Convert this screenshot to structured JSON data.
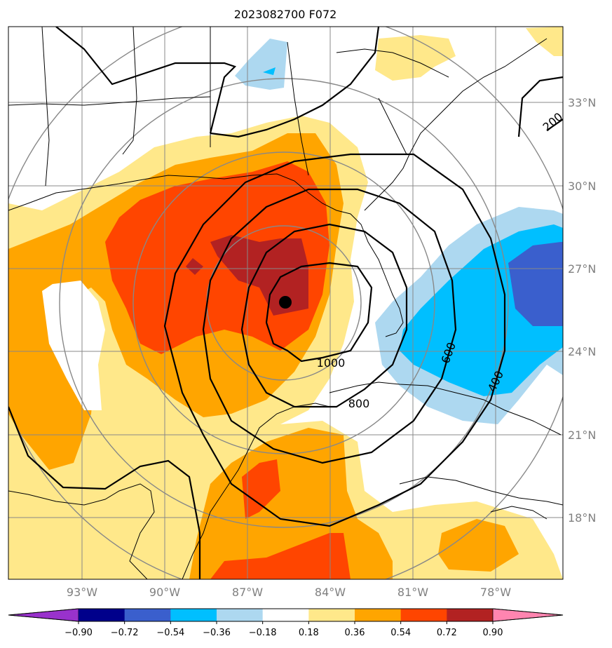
{
  "title": "2023082700 F072",
  "lon_labels": [
    "93°W",
    "90°W",
    "87°W",
    "84°W",
    "81°W",
    "78°W"
  ],
  "lat_labels": [
    "33°N",
    "30°N",
    "27°N",
    "24°N",
    "21°N",
    "18°N"
  ],
  "contour_labels": [
    "1000",
    "800",
    "600",
    "400",
    "200"
  ],
  "colorbar": {
    "tick_labels": [
      "−0.90",
      "−0.72",
      "−0.54",
      "−0.36",
      "−0.18",
      "0.18",
      "0.36",
      "0.54",
      "0.72",
      "0.90"
    ],
    "colors": [
      "#9932cc",
      "#00008b",
      "#3a5fcd",
      "#00bfff",
      "#add8f0",
      "#ffffff",
      "#ffe88a",
      "#ffa500",
      "#ff4500",
      "#b22222",
      "#ff85b0"
    ]
  },
  "storm_center": {
    "lat": "25.7N",
    "lon": "85.3W"
  },
  "fill_colors": {
    "pos1": "#ffe88a",
    "pos2": "#ffa500",
    "pos3": "#ff4500",
    "pos4": "#b22222",
    "neg1": "#add8f0",
    "neg2": "#00bfff",
    "neg3": "#3a5fcd"
  }
}
